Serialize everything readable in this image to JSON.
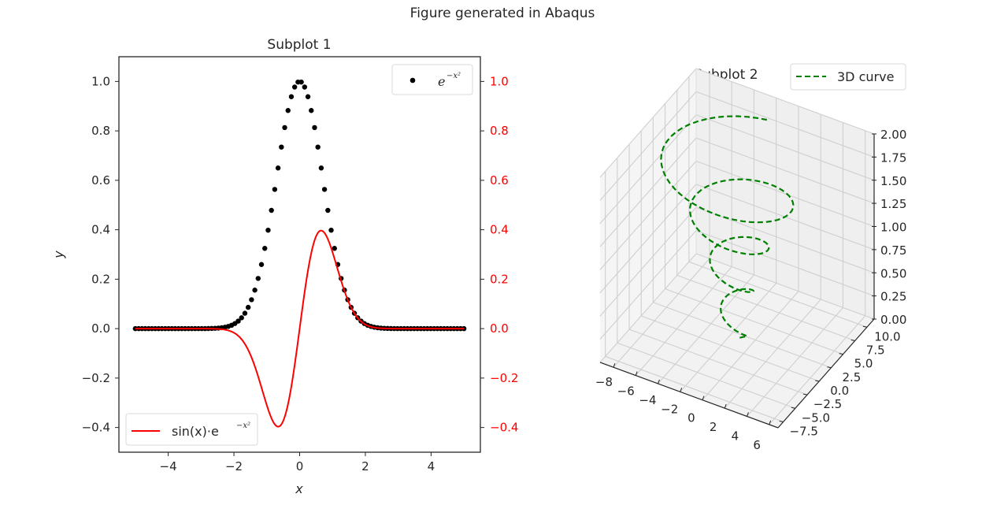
{
  "figure": {
    "suptitle": "Figure generated in Abaqus",
    "background": "#ffffff"
  },
  "chart_data": [
    {
      "type": "scatter+line",
      "title": "Subplot 1",
      "xlabel": "x",
      "ylabel": "y",
      "xlim": [
        -5.5,
        5.5
      ],
      "ylim": [
        -0.5,
        1.1
      ],
      "xticks": [
        -4,
        -2,
        0,
        2,
        4
      ],
      "xtick_labels": [
        "−4",
        "−2",
        "0",
        "2",
        "4"
      ],
      "yticks_left": [
        -0.4,
        -0.2,
        0.0,
        0.2,
        0.4,
        0.6,
        0.8,
        1.0
      ],
      "ytick_labels_left": [
        "−0.4",
        "−0.2",
        "0.0",
        "0.2",
        "0.4",
        "0.6",
        "0.8",
        "1.0"
      ],
      "twin_y_right": {
        "color": "#ff0000",
        "ylim": [
          -0.5,
          1.1
        ],
        "yticks": [
          -0.4,
          -0.2,
          0.0,
          0.2,
          0.4,
          0.6,
          0.8,
          1.0
        ],
        "ytick_labels": [
          "−0.4",
          "−0.2",
          "0.0",
          "0.2",
          "0.4",
          "0.6",
          "0.8",
          "1.0"
        ]
      },
      "grid": false,
      "series": [
        {
          "name": "e^{-x^2}",
          "legend_label_base": "e",
          "legend_label_sup": "−x²",
          "kind": "scatter",
          "color": "#000000",
          "marker": "o",
          "x_range": [
            -5,
            5
          ],
          "n_points": 100,
          "function": "exp(-x^2)",
          "legend_position": "upper right"
        },
        {
          "name": "sin(x)·e^{-x^2}",
          "legend_label_base": "sin(x)·e",
          "legend_label_sup": "−x²",
          "kind": "line",
          "color": "#ff0000",
          "x_range": [
            -5,
            5
          ],
          "n_points": 400,
          "function": "sin(x)*exp(-x^2)",
          "peak": {
            "x": 0.65,
            "y": 0.4
          },
          "trough": {
            "x": -0.65,
            "y": -0.4
          },
          "legend_position": "lower left"
        }
      ]
    },
    {
      "type": "line3d",
      "title": "Subplot 2",
      "series": [
        {
          "name": "3D curve",
          "color": "#008000",
          "linestyle": "dashed",
          "z_range": [
            0,
            2
          ],
          "radius_function": "1 + 1.5*z^2",
          "theta_range_turns": [
            -2,
            2
          ],
          "n_points": 200,
          "legend_position": "upper right"
        }
      ],
      "xlim": [
        -9.2,
        6.8
      ],
      "ylim": [
        -8.6,
        11.5
      ],
      "zlim": [
        0,
        2
      ],
      "xticks": [
        -8,
        -6,
        -4,
        -2,
        0,
        2,
        4,
        6
      ],
      "xtick_labels": [
        "−8",
        "−6",
        "−4",
        "−2",
        "0",
        "2",
        "4",
        "6"
      ],
      "yticks": [
        -7.5,
        -5.0,
        -2.5,
        0.0,
        2.5,
        5.0,
        7.5,
        10.0
      ],
      "ytick_labels": [
        "−7.5",
        "−5.0",
        "−2.5",
        "0.0",
        "2.5",
        "5.0",
        "7.5",
        "10.0"
      ],
      "zticks": [
        0.0,
        0.25,
        0.5,
        0.75,
        1.0,
        1.25,
        1.5,
        1.75,
        2.0
      ],
      "ztick_labels": [
        "0.00",
        "0.25",
        "0.50",
        "0.75",
        "1.00",
        "1.25",
        "1.50",
        "1.75",
        "2.00"
      ],
      "grid": true
    }
  ]
}
